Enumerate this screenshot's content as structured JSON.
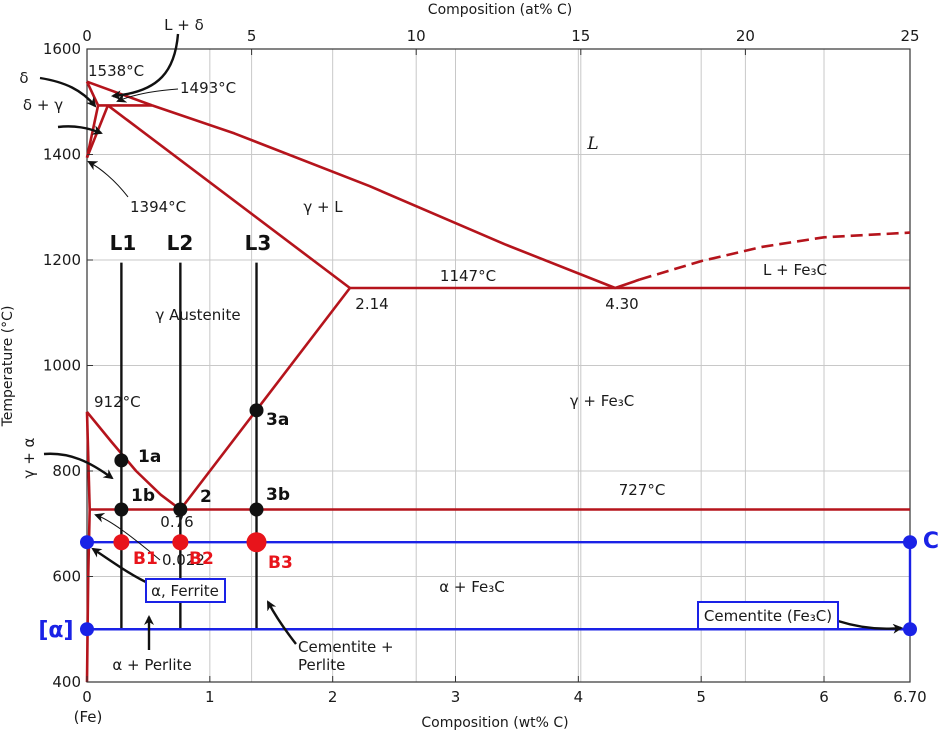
{
  "chart_data": {
    "type": "phase-diagram",
    "title": "",
    "xlabel_bottom": "Composition (wt% C)",
    "xlabel_top": "Composition (at% C)",
    "ylabel": "Temperature (°C)",
    "xlim": [
      0,
      6.7
    ],
    "ylim": [
      400,
      1600
    ],
    "x_ticks": [
      {
        "v": 0,
        "label": "0"
      },
      {
        "v": 1,
        "label": "1"
      },
      {
        "v": 2,
        "label": "2"
      },
      {
        "v": 3,
        "label": "3"
      },
      {
        "v": 4,
        "label": "4"
      },
      {
        "v": 5,
        "label": "5"
      },
      {
        "v": 6,
        "label": "6"
      },
      {
        "v": 6.7,
        "label": "6.70"
      }
    ],
    "x_origin_note": "(Fe)",
    "y_ticks": [
      {
        "v": 400,
        "label": "400"
      },
      {
        "v": 600,
        "label": "600"
      },
      {
        "v": 800,
        "label": "800"
      },
      {
        "v": 1000,
        "label": "1000"
      },
      {
        "v": 1200,
        "label": "1200"
      },
      {
        "v": 1400,
        "label": "1400"
      },
      {
        "v": 1600,
        "label": "1600"
      }
    ],
    "top_ticks": [
      {
        "v": 0,
        "label": "0"
      },
      {
        "v": 5,
        "label": "5"
      },
      {
        "v": 10,
        "label": "10"
      },
      {
        "v": 15,
        "label": "15"
      },
      {
        "v": 20,
        "label": "20"
      },
      {
        "v": 25,
        "label": "25"
      }
    ],
    "grid": true,
    "phase_boundaries": [
      {
        "name": "liquidus-left-delta",
        "points": [
          [
            0,
            1538
          ],
          [
            0.53,
            1493
          ]
        ]
      },
      {
        "name": "delta-solvus-upper",
        "points": [
          [
            0,
            1538
          ],
          [
            0.09,
            1493
          ]
        ]
      },
      {
        "name": "peritectic-line",
        "points": [
          [
            0.09,
            1493
          ],
          [
            0.53,
            1493
          ]
        ]
      },
      {
        "name": "delta-lower",
        "points": [
          [
            0.09,
            1493
          ],
          [
            0,
            1394
          ]
        ]
      },
      {
        "name": "gamma-left",
        "points": [
          [
            0.17,
            1493
          ],
          [
            0,
            1394
          ]
        ]
      },
      {
        "name": "liquidus-gamma",
        "points": [
          [
            0.53,
            1493
          ],
          [
            1.2,
            1440
          ],
          [
            2.3,
            1340
          ],
          [
            3.4,
            1230
          ],
          [
            4.3,
            1147
          ]
        ]
      },
      {
        "name": "solidus-gamma",
        "points": [
          [
            0.17,
            1493
          ],
          [
            2.14,
            1147
          ]
        ]
      },
      {
        "name": "eutectic-line",
        "points": [
          [
            2.14,
            1147
          ],
          [
            6.7,
            1147
          ]
        ]
      },
      {
        "name": "acm-line",
        "points": [
          [
            2.14,
            1147
          ],
          [
            0.76,
            727
          ]
        ]
      },
      {
        "name": "a3-line",
        "points": [
          [
            0,
            912
          ],
          [
            0.2,
            855
          ],
          [
            0.4,
            800
          ],
          [
            0.6,
            755
          ],
          [
            0.76,
            727
          ]
        ]
      },
      {
        "name": "alpha-upper",
        "points": [
          [
            0,
            912
          ],
          [
            0.022,
            727
          ]
        ]
      },
      {
        "name": "eutectoid-line",
        "points": [
          [
            0.022,
            727
          ],
          [
            6.7,
            727
          ]
        ]
      },
      {
        "name": "alpha-solvus",
        "points": [
          [
            0.022,
            727
          ],
          [
            0.01,
            600
          ],
          [
            0,
            400
          ]
        ]
      },
      {
        "name": "liquidus-fe3c-solid",
        "points": [
          [
            4.3,
            1147
          ],
          [
            4.5,
            1163
          ]
        ]
      }
    ],
    "dashed_boundary": {
      "name": "liquidus-fe3c-dashed",
      "points": [
        [
          4.5,
          1163
        ],
        [
          5.0,
          1198
        ],
        [
          5.5,
          1225
        ],
        [
          6.0,
          1243
        ],
        [
          6.7,
          1252
        ]
      ]
    },
    "vertical_lines": [
      {
        "label": "L1",
        "x": 0.28
      },
      {
        "label": "L2",
        "x": 0.76
      },
      {
        "label": "L3",
        "x": 1.38
      }
    ],
    "points_black": [
      {
        "label": "1a",
        "x": 0.28,
        "y": 820
      },
      {
        "label": "1b",
        "x": 0.28,
        "y": 727
      },
      {
        "label": "2",
        "x": 0.76,
        "y": 727
      },
      {
        "label": "3a",
        "x": 1.38,
        "y": 915
      },
      {
        "label": "3b",
        "x": 1.38,
        "y": 727
      }
    ],
    "points_red": [
      {
        "label": "B1",
        "x": 0.28,
        "y": 665,
        "r": 8
      },
      {
        "label": "B2",
        "x": 0.76,
        "y": 665,
        "r": 8
      },
      {
        "label": "B3",
        "x": 1.38,
        "y": 665,
        "r": 10
      }
    ],
    "lever_box": {
      "x0": 0,
      "x1": 6.7,
      "y_top": 665,
      "y_bottom": 500
    },
    "points_blue": [
      {
        "x": 0,
        "y": 665
      },
      {
        "x": 6.7,
        "y": 665
      },
      {
        "x": 0,
        "y": 500
      },
      {
        "x": 6.7,
        "y": 500
      }
    ],
    "phase_labels": {
      "L": "L",
      "gamma_L": "γ + L",
      "L_Fe3C": "L + Fe₃C",
      "gamma_austenite": "γ Austenite",
      "gamma_Fe3C": "γ + Fe₃C",
      "alpha_Fe3C": "α + Fe₃C",
      "alpha_perlite": "α + Perlite",
      "cementite_perlite_1": "Cementite +",
      "cementite_perlite_2": "Perlite",
      "delta": "δ",
      "delta_gamma": "δ + γ",
      "L_delta": "L + δ",
      "gamma_alpha": "γ + α",
      "alpha_ferrite": "α, Ferrite",
      "cementite": "Cementite (Fe₃C)",
      "alpha_bracket": "[α]",
      "C": "C"
    },
    "annotations": {
      "t1538": "1538°C",
      "t1493": "1493°C",
      "t1394": "1394°C",
      "t1147": "1147°C",
      "t912": "912°C",
      "t727": "727°C",
      "c214": "2.14",
      "c430": "4.30",
      "c076": "0.76",
      "c0022": "0.022"
    },
    "colors": {
      "boundary": "#b5141c",
      "line": "#111111",
      "point_black": "#111111",
      "point_red": "#e8141b",
      "blue": "#1a22e6",
      "grid": "#c8c8c8"
    }
  }
}
